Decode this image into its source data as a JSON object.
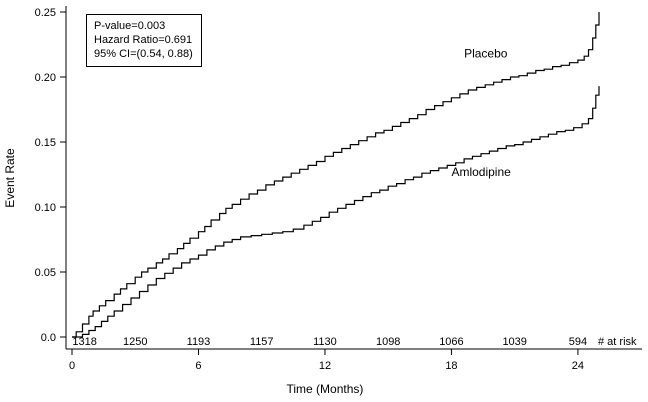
{
  "chart_data": {
    "type": "line",
    "subtype": "kaplan-meier-step",
    "title": "",
    "xlabel": "Time (Months)",
    "ylabel": "Event Rate",
    "xlim": [
      0,
      27
    ],
    "ylim": [
      0,
      0.25
    ],
    "x_ticks": [
      0,
      6,
      12,
      18,
      24
    ],
    "y_ticks": [
      0,
      0.05,
      0.1,
      0.15,
      0.2,
      0.25
    ],
    "y_tick_labels": [
      "0.0",
      "0.05",
      "0.10",
      "0.15",
      "0.20",
      "0.25"
    ],
    "grid": false,
    "legend_position": "curve-labels-inline",
    "line_color": "#000000",
    "annotation": [
      "P-value=0.003",
      "Hazard Ratio=0.691",
      "95% CI=(0.54, 0.88)"
    ],
    "series": [
      {
        "name": "Placebo",
        "label_pos": [
          18.6,
          0.215
        ],
        "points": [
          [
            0,
            0
          ],
          [
            0.2,
            0.004
          ],
          [
            0.5,
            0.01
          ],
          [
            0.8,
            0.016
          ],
          [
            1,
            0.02
          ],
          [
            1.3,
            0.024
          ],
          [
            1.6,
            0.028
          ],
          [
            2,
            0.033
          ],
          [
            2.3,
            0.037
          ],
          [
            2.6,
            0.041
          ],
          [
            3,
            0.046
          ],
          [
            3.3,
            0.05
          ],
          [
            3.6,
            0.053
          ],
          [
            4,
            0.057
          ],
          [
            4.3,
            0.06
          ],
          [
            4.6,
            0.064
          ],
          [
            5,
            0.068
          ],
          [
            5.3,
            0.072
          ],
          [
            5.6,
            0.076
          ],
          [
            6,
            0.081
          ],
          [
            6.3,
            0.085
          ],
          [
            6.6,
            0.09
          ],
          [
            7,
            0.095
          ],
          [
            7.3,
            0.099
          ],
          [
            7.6,
            0.102
          ],
          [
            8,
            0.106
          ],
          [
            8.4,
            0.11
          ],
          [
            8.8,
            0.113
          ],
          [
            9.2,
            0.117
          ],
          [
            9.6,
            0.12
          ],
          [
            10,
            0.123
          ],
          [
            10.4,
            0.126
          ],
          [
            10.8,
            0.129
          ],
          [
            11.2,
            0.132
          ],
          [
            11.6,
            0.135
          ],
          [
            12,
            0.139
          ],
          [
            12.4,
            0.142
          ],
          [
            12.8,
            0.145
          ],
          [
            13.2,
            0.148
          ],
          [
            13.6,
            0.151
          ],
          [
            14,
            0.154
          ],
          [
            14.4,
            0.157
          ],
          [
            14.8,
            0.159
          ],
          [
            15.2,
            0.162
          ],
          [
            15.6,
            0.165
          ],
          [
            16,
            0.168
          ],
          [
            16.4,
            0.171
          ],
          [
            16.8,
            0.175
          ],
          [
            17.2,
            0.178
          ],
          [
            17.6,
            0.181
          ],
          [
            18,
            0.184
          ],
          [
            18.4,
            0.187
          ],
          [
            18.8,
            0.19
          ],
          [
            19.2,
            0.192
          ],
          [
            19.6,
            0.194
          ],
          [
            20,
            0.196
          ],
          [
            20.4,
            0.198
          ],
          [
            20.8,
            0.2
          ],
          [
            21.2,
            0.201
          ],
          [
            21.6,
            0.203
          ],
          [
            22,
            0.205
          ],
          [
            22.4,
            0.206
          ],
          [
            22.8,
            0.208
          ],
          [
            23.2,
            0.209
          ],
          [
            23.6,
            0.211
          ],
          [
            24,
            0.213
          ],
          [
            24.3,
            0.216
          ],
          [
            24.5,
            0.221
          ],
          [
            24.7,
            0.23
          ],
          [
            24.85,
            0.24
          ],
          [
            25,
            0.25
          ]
        ]
      },
      {
        "name": "Amlodipine",
        "label_pos": [
          18.0,
          0.124
        ],
        "points": [
          [
            0,
            0
          ],
          [
            0.5,
            0.002
          ],
          [
            0.8,
            0.005
          ],
          [
            1.1,
            0.008
          ],
          [
            1.4,
            0.012
          ],
          [
            1.7,
            0.016
          ],
          [
            2,
            0.02
          ],
          [
            2.4,
            0.025
          ],
          [
            2.8,
            0.03
          ],
          [
            3.2,
            0.035
          ],
          [
            3.6,
            0.04
          ],
          [
            4,
            0.045
          ],
          [
            4.4,
            0.049
          ],
          [
            4.8,
            0.053
          ],
          [
            5.2,
            0.057
          ],
          [
            5.6,
            0.06
          ],
          [
            6,
            0.063
          ],
          [
            6.4,
            0.067
          ],
          [
            6.8,
            0.07
          ],
          [
            7.2,
            0.073
          ],
          [
            7.6,
            0.075
          ],
          [
            8,
            0.077
          ],
          [
            8.5,
            0.078
          ],
          [
            9,
            0.079
          ],
          [
            9.5,
            0.08
          ],
          [
            10,
            0.081
          ],
          [
            10.5,
            0.083
          ],
          [
            11,
            0.086
          ],
          [
            11.4,
            0.089
          ],
          [
            11.8,
            0.092
          ],
          [
            12.2,
            0.096
          ],
          [
            12.6,
            0.099
          ],
          [
            13,
            0.102
          ],
          [
            13.4,
            0.105
          ],
          [
            13.8,
            0.108
          ],
          [
            14.2,
            0.111
          ],
          [
            14.6,
            0.113
          ],
          [
            15,
            0.116
          ],
          [
            15.4,
            0.118
          ],
          [
            15.8,
            0.121
          ],
          [
            16.2,
            0.123
          ],
          [
            16.6,
            0.126
          ],
          [
            17,
            0.128
          ],
          [
            17.4,
            0.13
          ],
          [
            17.8,
            0.132
          ],
          [
            18.2,
            0.134
          ],
          [
            18.6,
            0.137
          ],
          [
            19,
            0.139
          ],
          [
            19.4,
            0.141
          ],
          [
            19.8,
            0.143
          ],
          [
            20.2,
            0.145
          ],
          [
            20.6,
            0.147
          ],
          [
            21,
            0.148
          ],
          [
            21.4,
            0.15
          ],
          [
            21.8,
            0.152
          ],
          [
            22.2,
            0.154
          ],
          [
            22.6,
            0.156
          ],
          [
            23,
            0.158
          ],
          [
            23.4,
            0.159
          ],
          [
            23.8,
            0.161
          ],
          [
            24.2,
            0.164
          ],
          [
            24.5,
            0.168
          ],
          [
            24.7,
            0.176
          ],
          [
            24.85,
            0.186
          ],
          [
            25,
            0.193
          ]
        ]
      }
    ],
    "at_risk": {
      "label": "# at risk",
      "x": [
        0.6,
        3,
        6,
        9,
        12,
        15,
        18,
        21,
        24
      ],
      "values": [
        1318,
        1250,
        1193,
        1157,
        1130,
        1098,
        1066,
        1039,
        594
      ]
    }
  }
}
